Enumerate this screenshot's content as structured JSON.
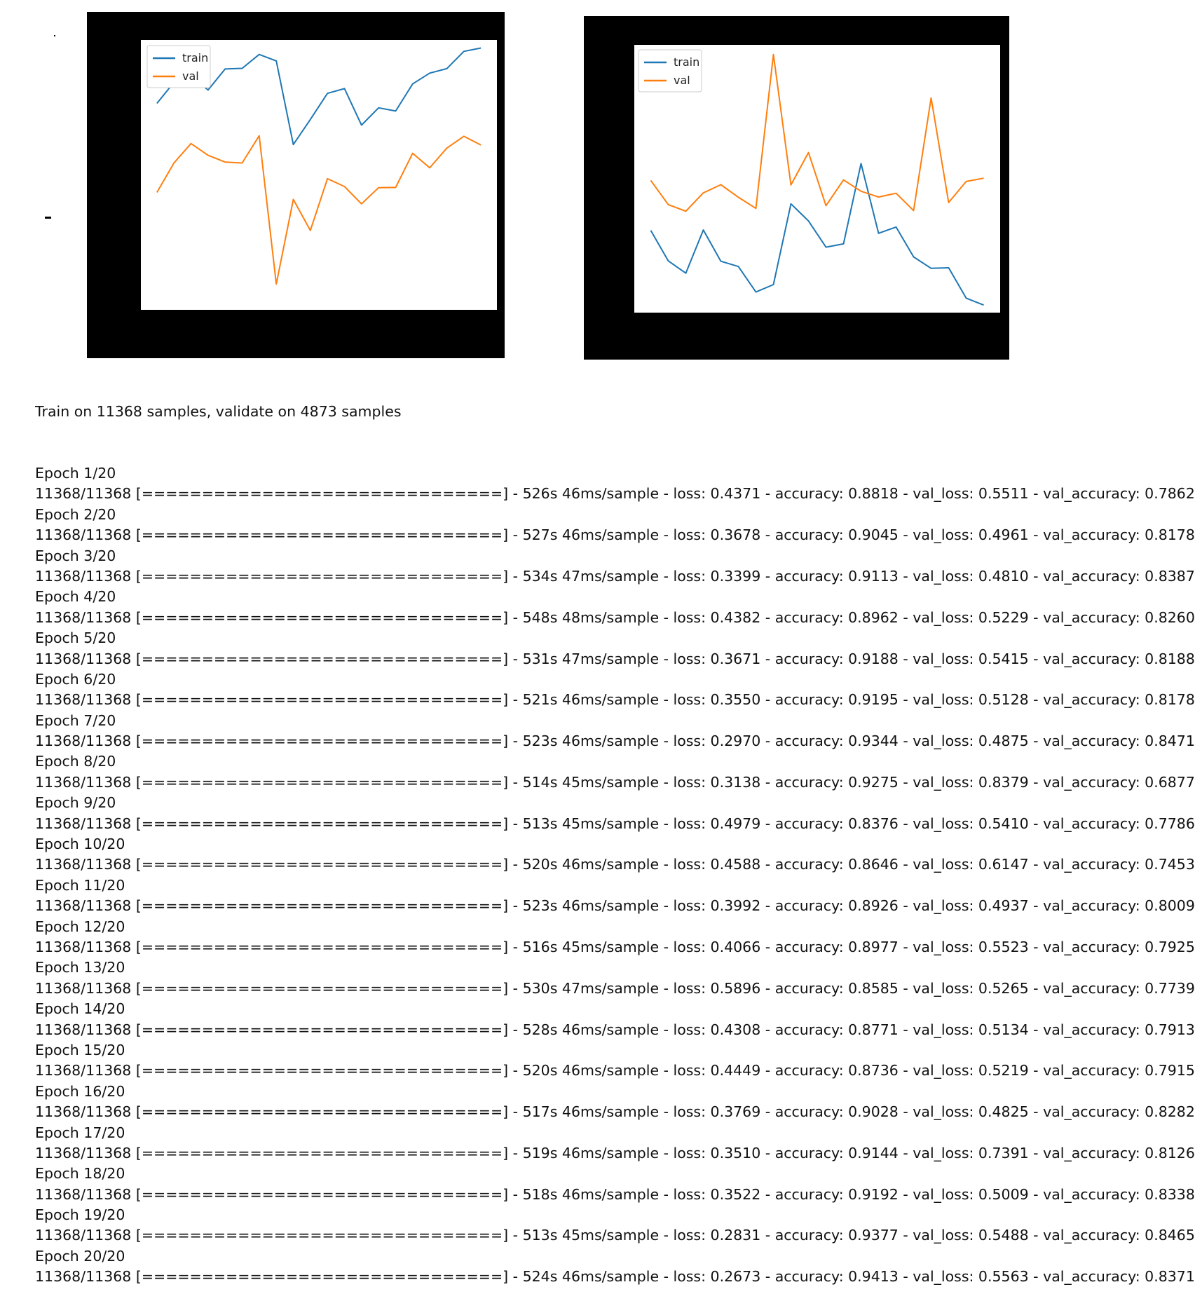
{
  "colors": {
    "train": "#1f77b4",
    "val": "#ff7f0e",
    "frame": "#000000",
    "plot_bg": "#ffffff"
  },
  "chart_data": [
    {
      "type": "line",
      "title": "",
      "xlabel": "",
      "ylabel": "",
      "legend": {
        "placement": "top-left",
        "entries": [
          "train",
          "val"
        ]
      },
      "grid": false,
      "x": [
        1,
        2,
        3,
        4,
        5,
        6,
        7,
        8,
        9,
        10,
        11,
        12,
        13,
        14,
        15,
        16,
        17,
        18,
        19,
        20
      ],
      "ylim": [
        0.66,
        0.95
      ],
      "series": [
        {
          "name": "train",
          "color": "#1f77b4",
          "values": [
            0.8818,
            0.9045,
            0.9113,
            0.8962,
            0.9188,
            0.9195,
            0.9344,
            0.9275,
            0.8376,
            0.8646,
            0.8926,
            0.8977,
            0.8585,
            0.8771,
            0.8736,
            0.9028,
            0.9144,
            0.9192,
            0.9377,
            0.9413
          ]
        },
        {
          "name": "val",
          "color": "#ff7f0e",
          "values": [
            0.7862,
            0.8178,
            0.8387,
            0.826,
            0.8188,
            0.8178,
            0.8471,
            0.6877,
            0.7786,
            0.7453,
            0.8009,
            0.7925,
            0.7739,
            0.7913,
            0.7915,
            0.8282,
            0.8126,
            0.8338,
            0.8465,
            0.8371
          ]
        }
      ]
    },
    {
      "type": "line",
      "title": "",
      "xlabel": "",
      "ylabel": "",
      "legend": {
        "placement": "top-left",
        "entries": [
          "train",
          "val"
        ]
      },
      "grid": false,
      "x": [
        1,
        2,
        3,
        4,
        5,
        6,
        7,
        8,
        9,
        10,
        11,
        12,
        13,
        14,
        15,
        16,
        17,
        18,
        19,
        20
      ],
      "ylim": [
        0.25,
        0.86
      ],
      "series": [
        {
          "name": "train",
          "color": "#1f77b4",
          "values": [
            0.4371,
            0.3678,
            0.3399,
            0.4382,
            0.3671,
            0.355,
            0.297,
            0.3138,
            0.4979,
            0.4588,
            0.3992,
            0.4066,
            0.5896,
            0.4308,
            0.4449,
            0.3769,
            0.351,
            0.3522,
            0.2831,
            0.2673
          ]
        },
        {
          "name": "val",
          "color": "#ff7f0e",
          "values": [
            0.5511,
            0.4961,
            0.481,
            0.5229,
            0.5415,
            0.5128,
            0.4875,
            0.8379,
            0.541,
            0.6147,
            0.4937,
            0.5523,
            0.5265,
            0.5134,
            0.5219,
            0.4825,
            0.7391,
            0.5009,
            0.5488,
            0.5563
          ]
        }
      ]
    }
  ],
  "log": {
    "header": "Train on 11368 samples, validate on 4873 samples",
    "lines": [
      "Epoch 1/20",
      "11368/11368 [==============================] - 526s 46ms/sample - loss: 0.4371 - accuracy: 0.8818 - val_loss: 0.5511 - val_accuracy: 0.7862",
      "Epoch 2/20",
      "11368/11368 [==============================] - 527s 46ms/sample - loss: 0.3678 - accuracy: 0.9045 - val_loss: 0.4961 - val_accuracy: 0.8178",
      "Epoch 3/20",
      "11368/11368 [==============================] - 534s 47ms/sample - loss: 0.3399 - accuracy: 0.9113 - val_loss: 0.4810 - val_accuracy: 0.8387",
      "Epoch 4/20",
      "11368/11368 [==============================] - 548s 48ms/sample - loss: 0.4382 - accuracy: 0.8962 - val_loss: 0.5229 - val_accuracy: 0.8260",
      "Epoch 5/20",
      "11368/11368 [==============================] - 531s 47ms/sample - loss: 0.3671 - accuracy: 0.9188 - val_loss: 0.5415 - val_accuracy: 0.8188",
      "Epoch 6/20",
      "11368/11368 [==============================] - 521s 46ms/sample - loss: 0.3550 - accuracy: 0.9195 - val_loss: 0.5128 - val_accuracy: 0.8178",
      "Epoch 7/20",
      "11368/11368 [==============================] - 523s 46ms/sample - loss: 0.2970 - accuracy: 0.9344 - val_loss: 0.4875 - val_accuracy: 0.8471",
      "Epoch 8/20",
      "11368/11368 [==============================] - 514s 45ms/sample - loss: 0.3138 - accuracy: 0.9275 - val_loss: 0.8379 - val_accuracy: 0.6877",
      "Epoch 9/20",
      "11368/11368 [==============================] - 513s 45ms/sample - loss: 0.4979 - accuracy: 0.8376 - val_loss: 0.5410 - val_accuracy: 0.7786",
      "Epoch 10/20",
      "11368/11368 [==============================] - 520s 46ms/sample - loss: 0.4588 - accuracy: 0.8646 - val_loss: 0.6147 - val_accuracy: 0.7453",
      "Epoch 11/20",
      "11368/11368 [==============================] - 523s 46ms/sample - loss: 0.3992 - accuracy: 0.8926 - val_loss: 0.4937 - val_accuracy: 0.8009",
      "Epoch 12/20",
      "11368/11368 [==============================] - 516s 45ms/sample - loss: 0.4066 - accuracy: 0.8977 - val_loss: 0.5523 - val_accuracy: 0.7925",
      "Epoch 13/20",
      "11368/11368 [==============================] - 530s 47ms/sample - loss: 0.5896 - accuracy: 0.8585 - val_loss: 0.5265 - val_accuracy: 0.7739",
      "Epoch 14/20",
      "11368/11368 [==============================] - 528s 46ms/sample - loss: 0.4308 - accuracy: 0.8771 - val_loss: 0.5134 - val_accuracy: 0.7913",
      "Epoch 15/20",
      "11368/11368 [==============================] - 520s 46ms/sample - loss: 0.4449 - accuracy: 0.8736 - val_loss: 0.5219 - val_accuracy: 0.7915",
      "Epoch 16/20",
      "11368/11368 [==============================] - 517s 46ms/sample - loss: 0.3769 - accuracy: 0.9028 - val_loss: 0.4825 - val_accuracy: 0.8282",
      "Epoch 17/20",
      "11368/11368 [==============================] - 519s 46ms/sample - loss: 0.3510 - accuracy: 0.9144 - val_loss: 0.7391 - val_accuracy: 0.8126",
      "Epoch 18/20",
      "11368/11368 [==============================] - 518s 46ms/sample - loss: 0.3522 - accuracy: 0.9192 - val_loss: 0.5009 - val_accuracy: 0.8338",
      "Epoch 19/20",
      "11368/11368 [==============================] - 513s 45ms/sample - loss: 0.2831 - accuracy: 0.9377 - val_loss: 0.5488 - val_accuracy: 0.8465",
      "Epoch 20/20",
      "11368/11368 [==============================] - 524s 46ms/sample - loss: 0.2673 - accuracy: 0.9413 - val_loss: 0.5563 - val_accuracy: 0.8371"
    ]
  }
}
